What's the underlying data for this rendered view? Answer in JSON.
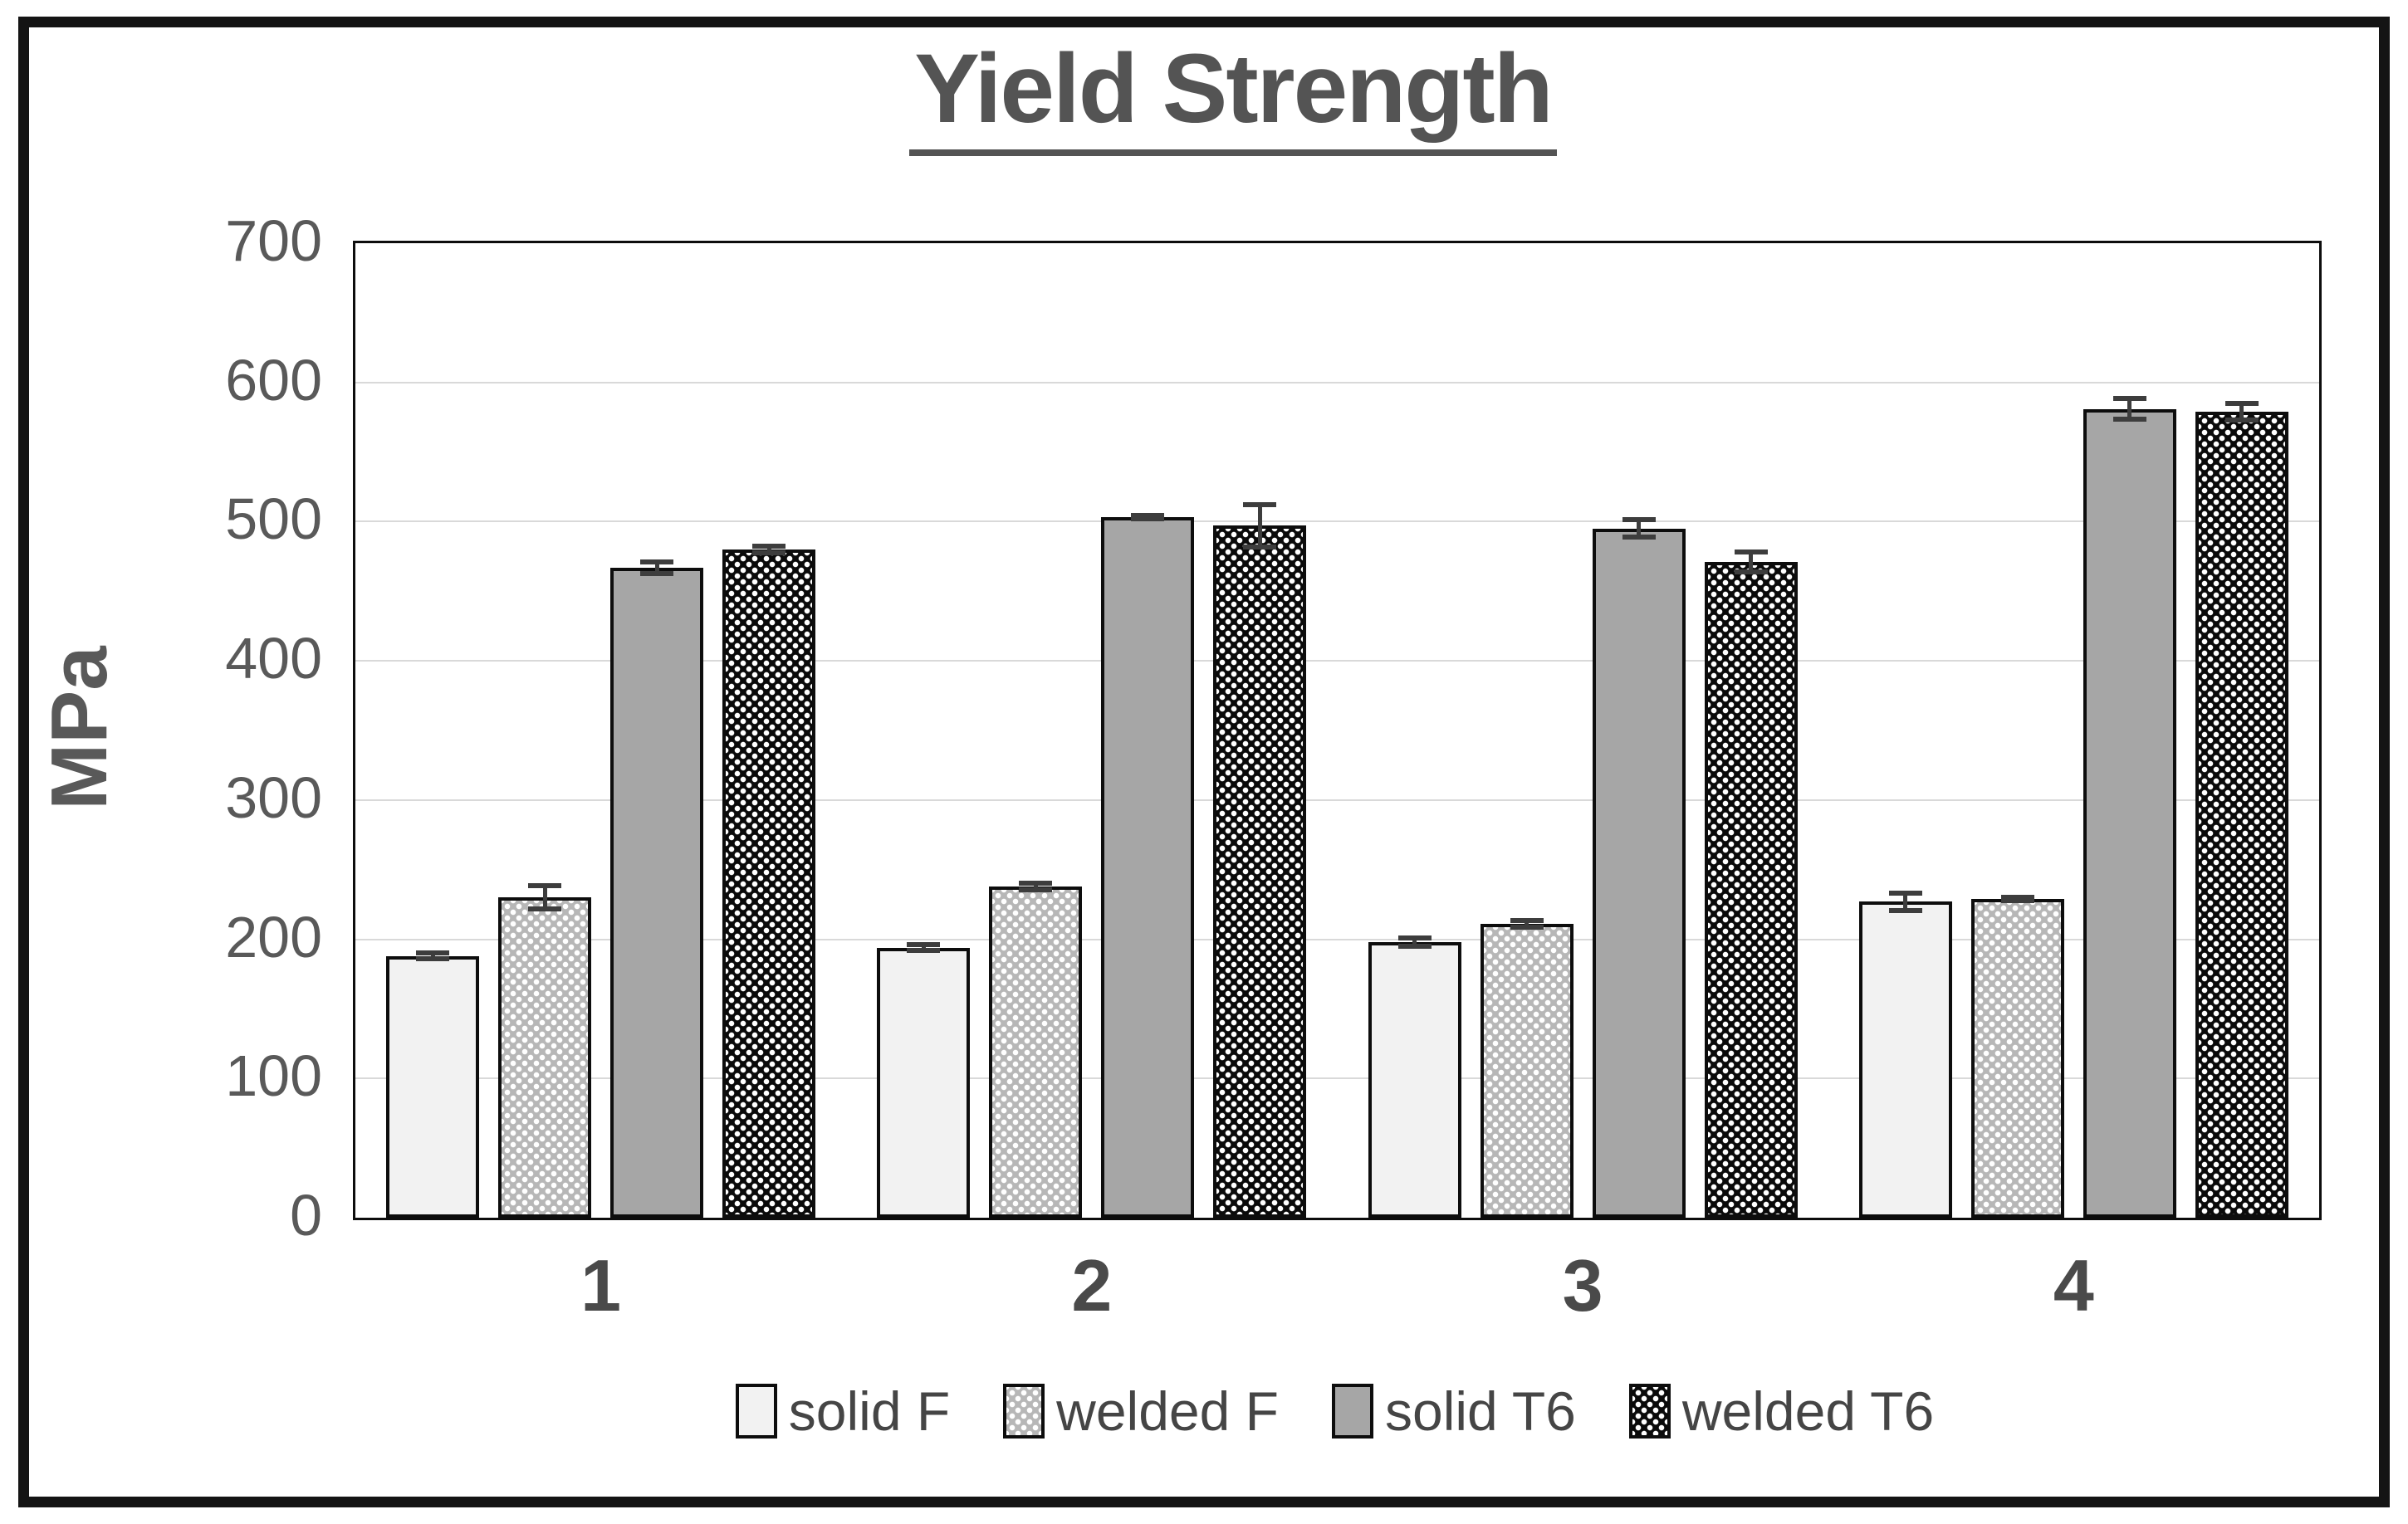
{
  "title": "Yield Strength",
  "chart_data": {
    "type": "bar",
    "title": "Yield Strength",
    "xlabel": "",
    "ylabel": "MPa",
    "ylim": [
      0,
      700
    ],
    "ytick_interval": 100,
    "grid": true,
    "legend_position": "bottom",
    "categories": [
      "1",
      "2",
      "3",
      "4"
    ],
    "series": [
      {
        "name": "solid F",
        "style": "solid-light",
        "values": [
          188,
          194,
          198,
          227
        ],
        "errors": [
          4,
          4,
          5,
          8
        ]
      },
      {
        "name": "welded F",
        "style": "pattern-light",
        "values": [
          230,
          238,
          211,
          229
        ],
        "errors": [
          10,
          4,
          4,
          3
        ]
      },
      {
        "name": "solid T6",
        "style": "solid-gray",
        "values": [
          467,
          503,
          495,
          581
        ],
        "errors": [
          6,
          3,
          8,
          9
        ]
      },
      {
        "name": "welded T6",
        "style": "pattern-dark",
        "values": [
          480,
          497,
          471,
          579
        ],
        "errors": [
          4,
          17,
          9,
          8
        ]
      }
    ]
  },
  "colors": {
    "title_text": "#545454",
    "axis_text": "#595959",
    "gridline": "#d9d9d9",
    "plot_border": "#0d0d0d",
    "bar_border": "#0d0d0d",
    "error_bar": "#3d3d3d",
    "solid_f_fill": "#f2f2f2",
    "solid_t6_fill": "#a6a6a6",
    "pattern_dark_base": "#0a0a0a",
    "pattern_light_base": "#b7b7b7",
    "outer_frame": "#141414"
  }
}
